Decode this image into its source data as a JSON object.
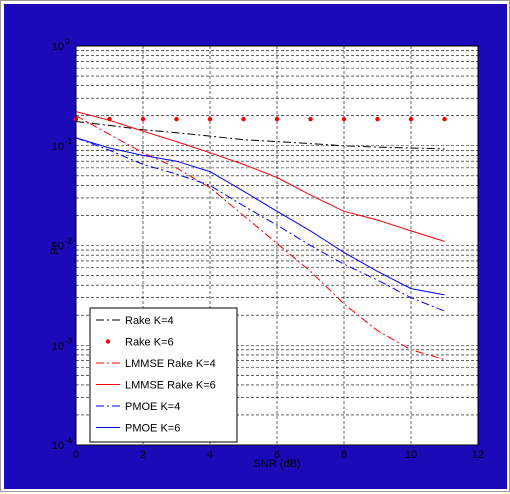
{
  "colors": {
    "figure_background": "#1a0ab8",
    "plot_background": "#ffffff",
    "axis_text": "#000000",
    "grid": "#000000",
    "black_series": "#000000",
    "red_series": "#ff0000",
    "blue_series": "#0000ff"
  },
  "chart_data": {
    "type": "line",
    "title": "",
    "xlabel": "SNR (dB)",
    "ylabel": "Pe",
    "xlim": [
      0,
      12
    ],
    "ylim": [
      0.0001,
      1
    ],
    "yscale": "log",
    "grid": true,
    "legend_position": "bottom-left",
    "x_ticks": [
      "0",
      "2",
      "4",
      "6",
      "8",
      "10",
      "12"
    ],
    "y_ticks": [
      {
        "base": "10",
        "exp": "0"
      },
      {
        "base": "10",
        "exp": "-1"
      },
      {
        "base": "10",
        "exp": "-2"
      },
      {
        "base": "10",
        "exp": "-3"
      },
      {
        "base": "10",
        "exp": "-4"
      }
    ],
    "series": [
      {
        "name": "Rake K=4",
        "color": "#000000",
        "style": "dashdot",
        "x": [
          0,
          1,
          2,
          3,
          4,
          5,
          6,
          7,
          8,
          9,
          10,
          11
        ],
        "y": [
          0.175,
          0.16,
          0.145,
          0.135,
          0.125,
          0.115,
          0.11,
          0.105,
          0.1,
          0.097,
          0.095,
          0.093
        ]
      },
      {
        "name": "Rake K=6",
        "color": "#ff0000",
        "style": "dots",
        "x": [
          0,
          1,
          2,
          3,
          4,
          5,
          6,
          7,
          8,
          9,
          10,
          11
        ],
        "y": [
          0.185,
          0.185,
          0.185,
          0.185,
          0.185,
          0.185,
          0.185,
          0.185,
          0.185,
          0.185,
          0.185,
          0.185
        ]
      },
      {
        "name": "LMMSE Rake K=4",
        "color": "#ff0000",
        "style": "dashdot",
        "x": [
          0,
          1,
          2,
          3,
          4,
          5,
          6,
          7,
          8,
          9,
          10,
          11
        ],
        "y": [
          0.2,
          0.13,
          0.085,
          0.06,
          0.038,
          0.02,
          0.0105,
          0.0055,
          0.0026,
          0.0014,
          0.0009,
          0.00072
        ]
      },
      {
        "name": "LMMSE Rake K=6",
        "color": "#ff0000",
        "style": "solid",
        "x": [
          0,
          1,
          2,
          3,
          4,
          5,
          6,
          7,
          8,
          9,
          10,
          11
        ],
        "y": [
          0.22,
          0.18,
          0.14,
          0.11,
          0.085,
          0.065,
          0.048,
          0.032,
          0.022,
          0.018,
          0.014,
          0.011
        ]
      },
      {
        "name": "PMOE K=4",
        "color": "#0000ff",
        "style": "dashdot",
        "x": [
          0,
          1,
          2,
          3,
          4,
          5,
          6,
          7,
          8,
          9,
          10,
          11
        ],
        "y": [
          0.12,
          0.09,
          0.065,
          0.052,
          0.04,
          0.025,
          0.016,
          0.01,
          0.0065,
          0.0045,
          0.003,
          0.0022
        ]
      },
      {
        "name": "PMOE K=6",
        "color": "#0000ff",
        "style": "solid",
        "x": [
          0,
          1,
          2,
          3,
          4,
          5,
          6,
          7,
          8,
          9,
          10,
          11
        ],
        "y": [
          0.12,
          0.095,
          0.08,
          0.07,
          0.055,
          0.035,
          0.022,
          0.014,
          0.0085,
          0.0055,
          0.0037,
          0.0032
        ]
      }
    ]
  }
}
